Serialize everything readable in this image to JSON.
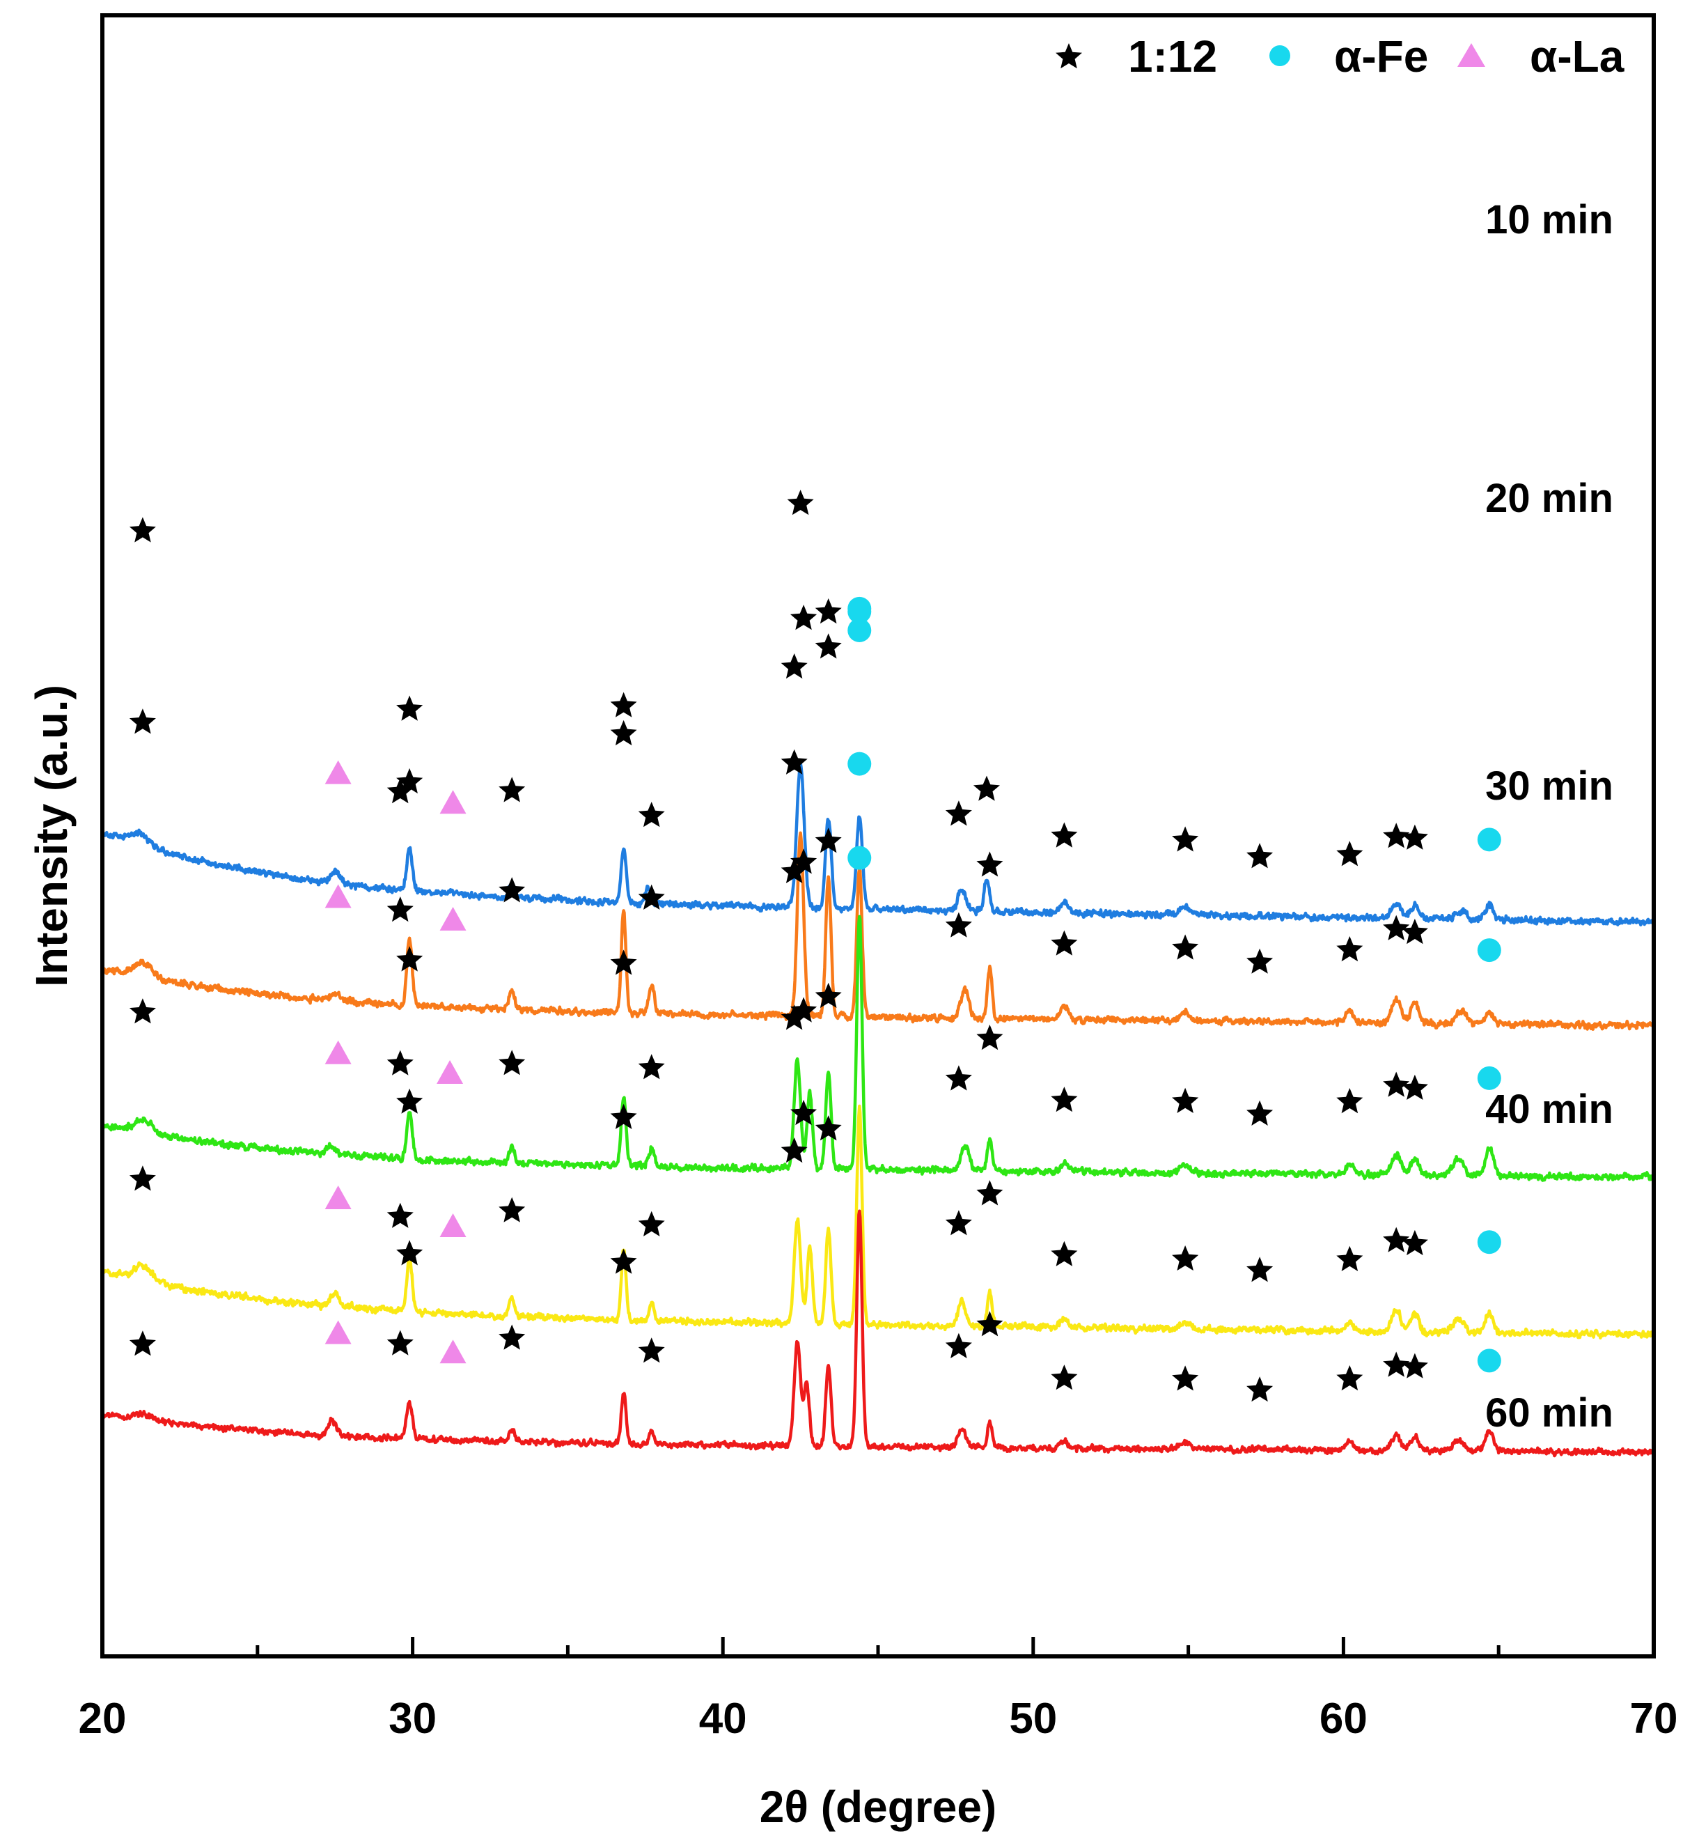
{
  "chart_data": {
    "type": "line",
    "title": "",
    "xlabel": "2θ (degree)",
    "ylabel": "Intensity (a.u.)",
    "xlim": [
      20,
      70
    ],
    "xticks": [
      20,
      30,
      40,
      50,
      60,
      70
    ],
    "xtick_labels": [
      "20",
      "30",
      "40",
      "50",
      "60",
      "70"
    ],
    "y_ticks_shown": false,
    "legend": {
      "position": "top-right",
      "entries": [
        {
          "label": "1:12",
          "marker": "star",
          "color": "#000000"
        },
        {
          "label": "α-Fe",
          "marker": "circle",
          "color": "#18d8ee"
        },
        {
          "label": "α-La",
          "marker": "triangle",
          "color": "#ef88e8"
        }
      ]
    },
    "series": [
      {
        "name": "10 min",
        "color": "#1f7de0",
        "offset": 920,
        "slope": 0.68,
        "tilt": 95,
        "noise": 11,
        "peaks": [
          [
            21.2,
            18,
            0.7
          ],
          [
            27.5,
            16,
            0.35
          ],
          [
            29.9,
            60,
            0.22
          ],
          [
            33.2,
            18,
            0.2
          ],
          [
            36.8,
            72,
            0.2
          ],
          [
            37.6,
            22,
            0.2
          ],
          [
            42.5,
            205,
            0.28
          ],
          [
            43.4,
            130,
            0.22
          ],
          [
            44.4,
            132,
            0.22
          ],
          [
            47.7,
            32,
            0.3
          ],
          [
            48.5,
            45,
            0.2
          ],
          [
            51.0,
            15,
            0.3
          ],
          [
            54.9,
            12,
            0.35
          ],
          [
            61.7,
            22,
            0.35
          ],
          [
            62.3,
            20,
            0.3
          ],
          [
            63.8,
            12,
            0.4
          ],
          [
            64.7,
            20,
            0.3
          ]
        ]
      },
      {
        "name": "20 min",
        "color": "#f87a1a",
        "offset": 760,
        "slope": 0.45,
        "tilt": 60,
        "noise": 11,
        "peaks": [
          [
            21.3,
            20,
            0.7
          ],
          [
            27.5,
            10,
            0.35
          ],
          [
            29.9,
            95,
            0.2
          ],
          [
            33.2,
            30,
            0.2
          ],
          [
            36.8,
            145,
            0.17
          ],
          [
            37.7,
            40,
            0.2
          ],
          [
            42.5,
            260,
            0.24
          ],
          [
            43.4,
            200,
            0.2
          ],
          [
            44.4,
            215,
            0.2
          ],
          [
            47.8,
            42,
            0.3
          ],
          [
            48.6,
            75,
            0.18
          ],
          [
            51.0,
            18,
            0.3
          ],
          [
            54.9,
            14,
            0.35
          ],
          [
            60.2,
            14,
            0.3
          ],
          [
            61.7,
            35,
            0.35
          ],
          [
            62.3,
            30,
            0.3
          ],
          [
            63.8,
            20,
            0.4
          ],
          [
            64.7,
            16,
            0.3
          ]
        ]
      },
      {
        "name": "30 min",
        "color": "#2ee614",
        "offset": 540,
        "slope": 0.4,
        "tilt": 55,
        "noise": 11,
        "peaks": [
          [
            21.3,
            18,
            0.7
          ],
          [
            27.4,
            12,
            0.35
          ],
          [
            29.9,
            70,
            0.2
          ],
          [
            33.2,
            22,
            0.2
          ],
          [
            36.8,
            100,
            0.18
          ],
          [
            37.7,
            26,
            0.2
          ],
          [
            42.4,
            155,
            0.24
          ],
          [
            42.8,
            110,
            0.2
          ],
          [
            43.4,
            140,
            0.2
          ],
          [
            44.4,
            365,
            0.2
          ],
          [
            47.8,
            38,
            0.3
          ],
          [
            48.6,
            45,
            0.18
          ],
          [
            51.0,
            12,
            0.3
          ],
          [
            54.9,
            12,
            0.35
          ],
          [
            60.2,
            14,
            0.3
          ],
          [
            61.7,
            28,
            0.35
          ],
          [
            62.3,
            24,
            0.3
          ],
          [
            63.7,
            22,
            0.4
          ],
          [
            64.7,
            40,
            0.3
          ]
        ]
      },
      {
        "name": "40 min",
        "color": "#fae814",
        "offset": 320,
        "slope": 0.52,
        "tilt": 65,
        "noise": 11,
        "peaks": [
          [
            21.3,
            20,
            0.7
          ],
          [
            27.5,
            20,
            0.3
          ],
          [
            29.9,
            75,
            0.2
          ],
          [
            33.2,
            26,
            0.2
          ],
          [
            36.8,
            100,
            0.18
          ],
          [
            37.7,
            22,
            0.2
          ],
          [
            42.4,
            150,
            0.24
          ],
          [
            42.8,
            110,
            0.2
          ],
          [
            43.4,
            135,
            0.2
          ],
          [
            44.4,
            310,
            0.2
          ],
          [
            47.7,
            36,
            0.3
          ],
          [
            48.6,
            50,
            0.18
          ],
          [
            51.0,
            14,
            0.3
          ],
          [
            54.9,
            10,
            0.35
          ],
          [
            60.2,
            12,
            0.3
          ],
          [
            61.7,
            30,
            0.35
          ],
          [
            62.3,
            26,
            0.3
          ],
          [
            63.7,
            20,
            0.4
          ],
          [
            64.7,
            30,
            0.3
          ]
        ]
      },
      {
        "name": "60 min",
        "color": "#ee1a1a",
        "offset": 140,
        "slope": 0.3,
        "tilt": 40,
        "noise": 10,
        "peaks": [
          [
            21.3,
            8,
            0.7
          ],
          [
            27.4,
            22,
            0.3
          ],
          [
            29.9,
            50,
            0.22
          ],
          [
            33.2,
            18,
            0.2
          ],
          [
            36.8,
            75,
            0.18
          ],
          [
            37.7,
            18,
            0.2
          ],
          [
            42.4,
            150,
            0.24
          ],
          [
            42.7,
            90,
            0.2
          ],
          [
            43.4,
            115,
            0.2
          ],
          [
            44.4,
            340,
            0.2
          ],
          [
            47.7,
            26,
            0.3
          ],
          [
            48.6,
            36,
            0.18
          ],
          [
            51.0,
            10,
            0.3
          ],
          [
            54.9,
            10,
            0.35
          ],
          [
            60.2,
            12,
            0.3
          ],
          [
            61.7,
            22,
            0.35
          ],
          [
            62.3,
            20,
            0.3
          ],
          [
            63.7,
            16,
            0.4
          ],
          [
            64.7,
            30,
            0.3
          ]
        ]
      }
    ],
    "annotations": [
      {
        "series": "10 min",
        "markers": [
          [
            "star",
            21.3,
            435
          ],
          [
            "tri",
            27.6,
            145
          ],
          [
            "star",
            29.6,
            140
          ],
          [
            "star",
            29.9,
            200
          ],
          [
            "tri",
            31.3,
            130
          ],
          [
            "star",
            33.2,
            135
          ],
          [
            "star",
            36.8,
            210
          ],
          [
            "star",
            37.7,
            115
          ],
          [
            "star",
            42.3,
            295
          ],
          [
            "star",
            42.5,
            375
          ],
          [
            "star",
            43.4,
            295
          ],
          [
            "circle",
            44.4,
            295
          ],
          [
            "star",
            47.6,
            115
          ],
          [
            "star",
            48.5,
            130
          ],
          [
            "star",
            51.0,
            95
          ],
          [
            "star",
            54.9,
            95
          ],
          [
            "star",
            57.3,
            85
          ],
          [
            "star",
            60.2,
            90
          ],
          [
            "star",
            61.7,
            95
          ],
          [
            "star",
            62.3,
            95
          ],
          [
            "circle",
            64.7,
            95
          ]
        ]
      },
      {
        "series": "20 min",
        "markers": [
          [
            "star",
            21.3,
            345
          ],
          [
            "tri",
            27.6,
            140
          ],
          [
            "star",
            29.6,
            135
          ],
          [
            "star",
            29.9,
            225
          ],
          [
            "tri",
            31.3,
            125
          ],
          [
            "star",
            33.2,
            140
          ],
          [
            "star",
            36.8,
            255
          ],
          [
            "star",
            37.7,
            125
          ],
          [
            "star",
            42.3,
            325
          ],
          [
            "star",
            42.6,
            410
          ],
          [
            "star",
            43.4,
            330
          ],
          [
            "circle",
            44.4,
            340
          ],
          [
            "star",
            47.6,
            120
          ],
          [
            "star",
            48.6,
            145
          ],
          [
            "star",
            51.0,
            90
          ],
          [
            "star",
            54.9,
            90
          ],
          [
            "star",
            57.3,
            85
          ],
          [
            "star",
            60.2,
            90
          ],
          [
            "star",
            61.7,
            100
          ],
          [
            "star",
            62.3,
            100
          ],
          [
            "circle",
            64.7,
            90
          ]
        ]
      },
      {
        "series": "30 min",
        "markers": [
          [
            "star",
            21.3,
            155
          ],
          [
            "tri",
            27.6,
            140
          ],
          [
            "star",
            29.6,
            135
          ],
          [
            "star",
            29.9,
            215
          ],
          [
            "tri",
            31.2,
            125
          ],
          [
            "star",
            33.2,
            120
          ],
          [
            "star",
            36.8,
            190
          ],
          [
            "star",
            37.7,
            115
          ],
          [
            "star",
            42.3,
            330
          ],
          [
            "star",
            42.6,
            410
          ],
          [
            "star",
            43.4,
            330
          ],
          [
            "circle",
            44.4,
            440
          ],
          [
            "star",
            47.6,
            120
          ],
          [
            "star",
            48.6,
            145
          ],
          [
            "star",
            51.0,
            90
          ],
          [
            "star",
            54.9,
            90
          ],
          [
            "star",
            57.3,
            85
          ],
          [
            "star",
            60.2,
            90
          ],
          [
            "star",
            61.7,
            100
          ],
          [
            "star",
            62.3,
            100
          ],
          [
            "circle",
            64.7,
            100
          ]
        ]
      },
      {
        "series": "40 min",
        "markers": [
          [
            "star",
            21.3,
            125
          ],
          [
            "tri",
            27.6,
            140
          ],
          [
            "star",
            29.6,
            135
          ],
          [
            "star",
            29.9,
            225
          ],
          [
            "tri",
            31.3,
            125
          ],
          [
            "star",
            33.2,
            125
          ],
          [
            "star",
            36.8,
            190
          ],
          [
            "star",
            37.7,
            115
          ],
          [
            "star",
            42.3,
            345
          ],
          [
            "star",
            42.6,
            420
          ],
          [
            "star",
            43.4,
            335
          ],
          [
            "circle",
            44.4,
            495
          ],
          [
            "star",
            47.6,
            120
          ],
          [
            "star",
            48.6,
            140
          ],
          [
            "star",
            51.0,
            90
          ],
          [
            "star",
            54.9,
            90
          ],
          [
            "star",
            57.3,
            85
          ],
          [
            "star",
            60.2,
            90
          ],
          [
            "star",
            61.7,
            100
          ],
          [
            "star",
            62.3,
            100
          ],
          [
            "circle",
            64.7,
            100
          ]
        ]
      },
      {
        "series": "60 min",
        "markers": [
          [
            "star",
            21.3,
            100
          ],
          [
            "tri",
            27.6,
            140
          ],
          [
            "star",
            29.6,
            135
          ],
          [
            "star",
            29.9,
            215
          ],
          [
            "tri",
            31.3,
            125
          ],
          [
            "star",
            33.2,
            130
          ],
          [
            "star",
            36.8,
            185
          ],
          [
            "star",
            37.7,
            115
          ],
          [
            "star",
            42.3,
            330
          ],
          [
            "star",
            42.6,
            410
          ],
          [
            "star",
            43.4,
            340
          ],
          [
            "circle",
            44.4,
            505
          ],
          [
            "star",
            47.6,
            125
          ],
          [
            "star",
            48.6,
            140
          ],
          [
            "star",
            51.0,
            90
          ],
          [
            "star",
            54.9,
            90
          ],
          [
            "star",
            57.3,
            85
          ],
          [
            "star",
            60.2,
            90
          ],
          [
            "star",
            61.7,
            100
          ],
          [
            "star",
            62.3,
            100
          ],
          [
            "circle",
            64.7,
            100
          ]
        ]
      }
    ],
    "colors": {
      "star": "#000000",
      "alpha_fe": "#18d8ee",
      "alpha_la": "#ef88e8"
    }
  }
}
